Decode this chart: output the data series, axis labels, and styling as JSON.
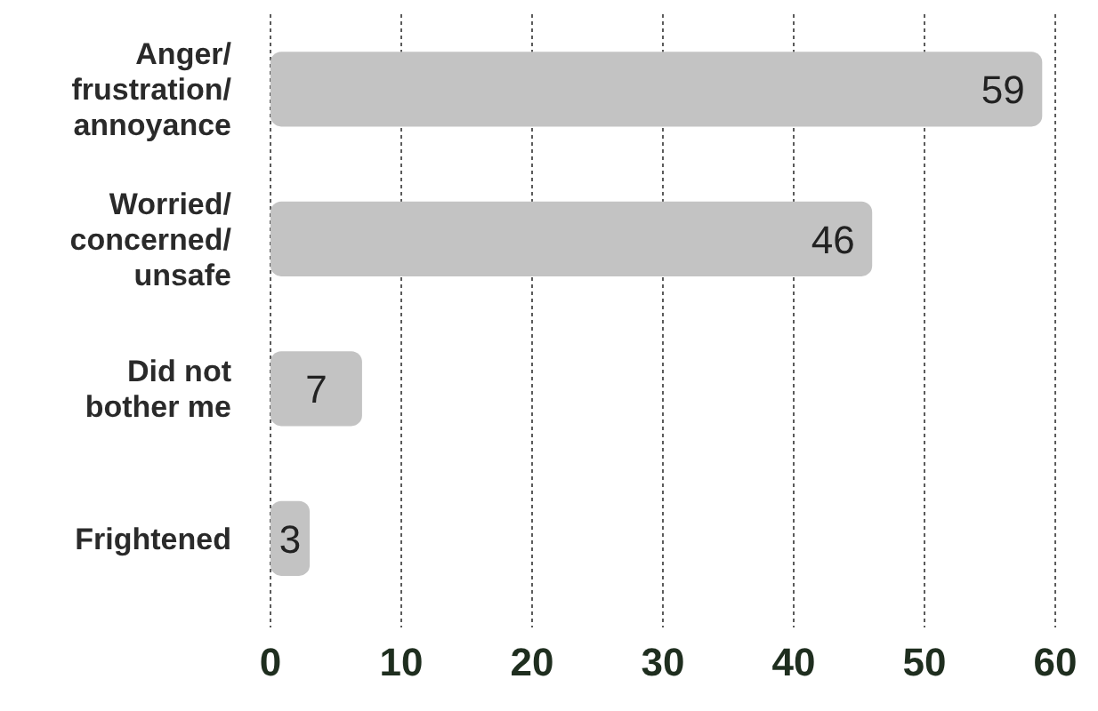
{
  "chart_data": {
    "type": "bar",
    "orientation": "horizontal",
    "categories": [
      "Anger/ frustration/ annoyance",
      "Worried/ concerned/ unsafe",
      "Did not bother me",
      "Frightened"
    ],
    "values": [
      59,
      46,
      7,
      3
    ],
    "color": "#c3c3c3",
    "xlim": [
      0,
      60
    ],
    "xticks": [
      0,
      10,
      20,
      30,
      40,
      50,
      60
    ],
    "grid": "x",
    "data_labels": true
  }
}
